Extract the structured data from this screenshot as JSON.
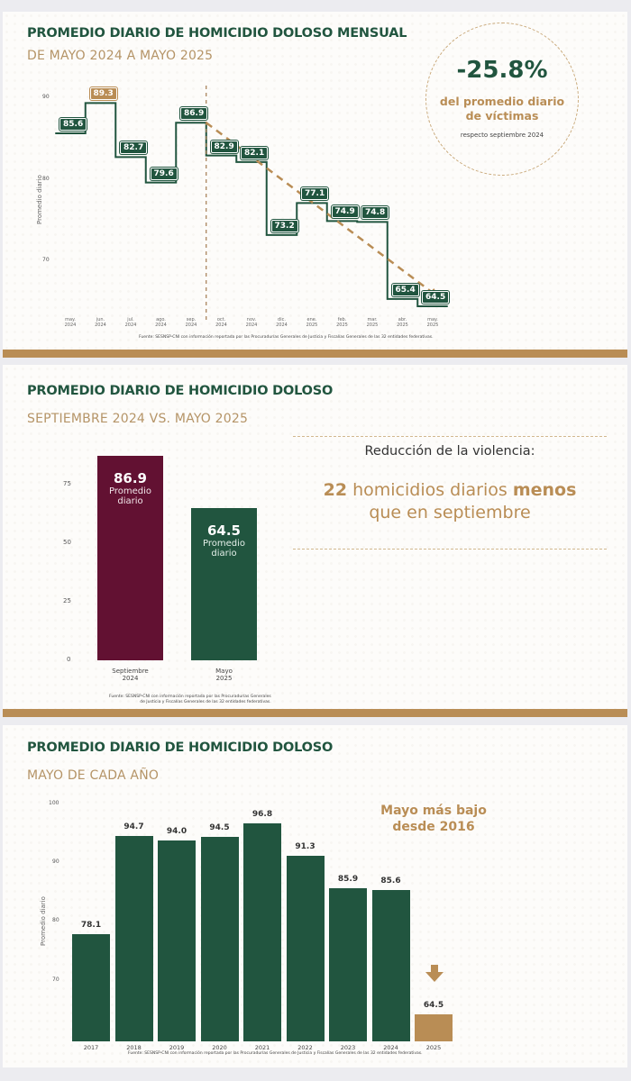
{
  "colors": {
    "green": "#21553f",
    "gold": "#b98d55",
    "maroon": "#621132",
    "subtitle_gold": "#b59467"
  },
  "panel1": {
    "title": "PROMEDIO DIARIO DE HOMICIDIO DOLOSO MENSUAL",
    "subtitle": "DE MAYO 2024 A MAYO 2025",
    "y_axis_title": "Promedio diario",
    "y_ticks": [
      "90",
      "80",
      "70"
    ],
    "callout": {
      "value": "-25.8%",
      "line1": "del promedio diario",
      "line2": "de víctimas",
      "line3": "respecto septiembre 2024"
    },
    "source": "Fuente: SESNSP-CNI con información reportada por las Procuradurías Generales de Justicia y Fiscalías Generales de las 32 entidades federativas."
  },
  "panel2": {
    "title": "PROMEDIO DIARIO DE HOMICIDIO DOLOSO",
    "subtitle": "SEPTIEMBRE 2024 VS. MAYO 2025",
    "y_ticks": [
      "75",
      "50",
      "25",
      "0"
    ],
    "bar1": {
      "value": "86.9",
      "label1": "Promedio",
      "label2": "diario",
      "cat1": "Septiembre",
      "cat2": "2024"
    },
    "bar2": {
      "value": "64.5",
      "label1": "Promedio",
      "label2": "diario",
      "cat1": "Mayo",
      "cat2": "2025"
    },
    "callout": {
      "heading": "Reducción de la violencia:",
      "num": "22",
      "mid": " homicidios diarios ",
      "bold": "menos",
      "line2": "que en septiembre"
    },
    "source1": "Fuente: SESNSP-CNI con información reportada por las Procuradurías Generales",
    "source2": "de Justicia y Fiscalías Generales de las 32 entidades federativas."
  },
  "panel3": {
    "title": "PROMEDIO DIARIO DE HOMICIDIO DOLOSO",
    "subtitle": "MAYO DE CADA AÑO",
    "y_axis_title": "Promedio diario",
    "y_ticks": [
      "100",
      "90",
      "80",
      "70"
    ],
    "callout_line1": "Mayo más bajo",
    "callout_line2": "desde 2016",
    "source": "Fuente: SESNSP-CNI con información reportada por las Procuradurías Generales de Justicia y Fiscalías Generales de las 32 entidades federativas."
  },
  "chart_data": [
    {
      "type": "line",
      "title": "PROMEDIO DIARIO DE HOMICIDIO DOLOSO MENSUAL",
      "subtitle": "DE MAYO 2024 A MAYO 2025",
      "ylabel": "Promedio diario",
      "xlabel": "",
      "style": "step",
      "categories": [
        "may. 2024",
        "jun. 2024",
        "jul. 2024",
        "ago. 2024",
        "sep. 2024",
        "oct. 2024",
        "nov. 2024",
        "dic. 2024",
        "ene. 2025",
        "feb. 2025",
        "mar. 2025",
        "abr. 2025",
        "may. 2025"
      ],
      "values": [
        85.6,
        89.3,
        82.7,
        79.6,
        86.9,
        82.9,
        82.1,
        73.2,
        77.1,
        74.9,
        74.8,
        65.4,
        64.5
      ],
      "y_ticks": [
        70,
        80,
        90
      ],
      "ylim": [
        64,
        91
      ],
      "grid": false,
      "annotations": [
        "89.3 highlighted in gold (maximum)",
        "Vertical dashed line between sep. 2024 and oct. 2024",
        "Dashed gold trend arrow from sep. 2024 (86.9) to may. 2025 (64.5)",
        "-25.8% del promedio diario de víctimas respecto septiembre 2024"
      ]
    },
    {
      "type": "bar",
      "title": "PROMEDIO DIARIO DE HOMICIDIO DOLOSO",
      "subtitle": "SEPTIEMBRE 2024 VS. MAYO 2025",
      "categories": [
        "Septiembre 2024",
        "Mayo 2025"
      ],
      "values": [
        86.9,
        64.5
      ],
      "colors": [
        "#621132",
        "#21553f"
      ],
      "y_ticks": [
        0,
        25,
        50,
        75
      ],
      "ylim": [
        0,
        90
      ],
      "grid": false,
      "annotations": [
        "Reducción de la violencia: 22 homicidios diarios menos que en septiembre"
      ]
    },
    {
      "type": "bar",
      "title": "PROMEDIO DIARIO DE HOMICIDIO DOLOSO",
      "subtitle": "MAYO DE CADA AÑO",
      "ylabel": "Promedio diario",
      "categories": [
        "2017",
        "2018",
        "2019",
        "2020",
        "2021",
        "2022",
        "2023",
        "2024",
        "2025"
      ],
      "values": [
        78.1,
        94.7,
        94.0,
        94.5,
        96.8,
        91.3,
        85.9,
        85.6,
        64.5
      ],
      "colors": [
        "#21553f",
        "#21553f",
        "#21553f",
        "#21553f",
        "#21553f",
        "#21553f",
        "#21553f",
        "#21553f",
        "#b98d55"
      ],
      "y_ticks": [
        70,
        80,
        90,
        100
      ],
      "ylim": [
        60,
        100
      ],
      "grid": false,
      "annotations": [
        "Mayo más bajo desde 2016",
        "Down arrow above 2025 bar"
      ]
    }
  ]
}
